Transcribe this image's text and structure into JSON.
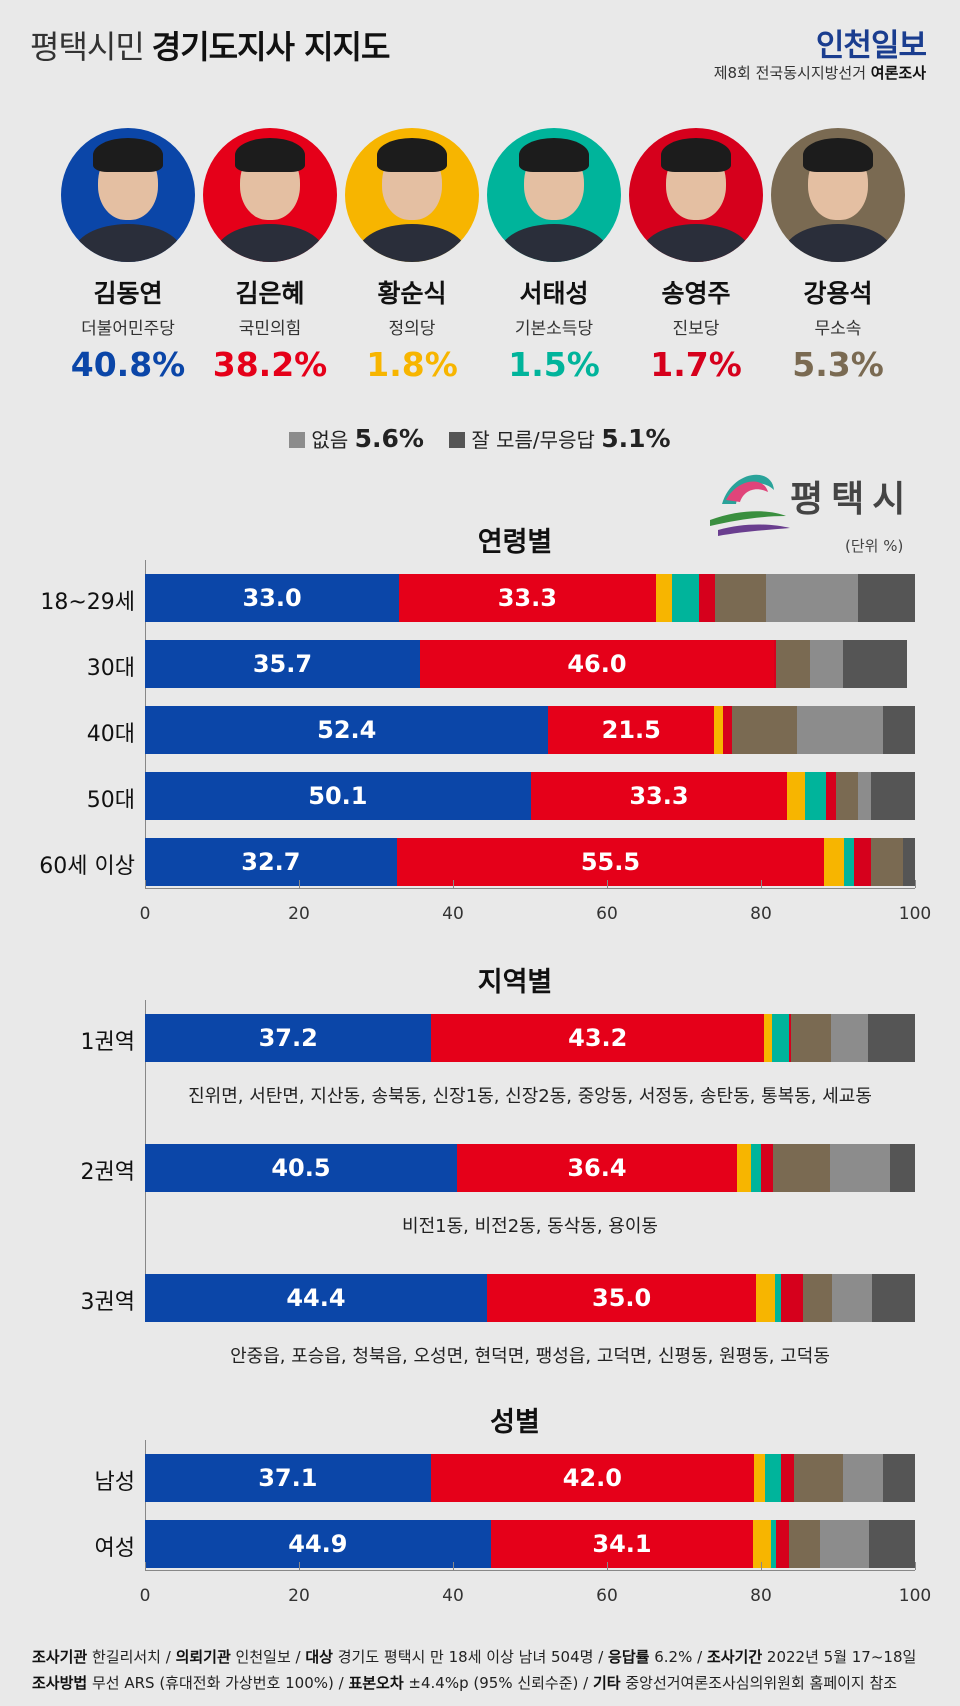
{
  "header": {
    "title_light": "평택시민",
    "title_bold": "경기도지사 지지도",
    "brand_part1": "인천",
    "brand_part2": "일보",
    "subline_light": "제8회 전국동시지방선거",
    "subline_bold": "여론조사"
  },
  "candidates": [
    {
      "name": "김동연",
      "party": "더불어민주당",
      "pct": "40.8%",
      "color": "#0b46a8"
    },
    {
      "name": "김은혜",
      "party": "국민의힘",
      "pct": "38.2%",
      "color": "#e50019"
    },
    {
      "name": "황순식",
      "party": "정의당",
      "pct": "1.8%",
      "color": "#f7b500"
    },
    {
      "name": "서태성",
      "party": "기본소득당",
      "pct": "1.5%",
      "color": "#00b49b"
    },
    {
      "name": "송영주",
      "party": "진보당",
      "pct": "1.7%",
      "color": "#d6001c"
    },
    {
      "name": "강용석",
      "party": "무소속",
      "pct": "5.3%",
      "color": "#7a6a52"
    }
  ],
  "extra_legend": {
    "none_label": "없음",
    "none_pct": "5.6%",
    "none_color": "#8c8c8c",
    "dk_label": "잘 모름/무응답",
    "dk_pct": "5.1%",
    "dk_color": "#555555"
  },
  "logo": {
    "text": "평택시"
  },
  "unit": "(단위 %)",
  "sections": {
    "age": "연령별",
    "region": "지역별",
    "gender": "성별"
  },
  "series_colors": [
    "#0b46a8",
    "#e50019",
    "#f7b500",
    "#00b49b",
    "#d6001c",
    "#7a6a52",
    "#8c8c8c",
    "#555555"
  ],
  "chart_data": [
    {
      "type": "bar",
      "orientation": "horizontal-stacked",
      "title": "연령별",
      "categories": [
        "18~29세",
        "30대",
        "40대",
        "50대",
        "60세 이상"
      ],
      "series": [
        {
          "name": "김동연",
          "values": [
            33.0,
            35.7,
            52.4,
            50.1,
            32.7
          ]
        },
        {
          "name": "김은혜",
          "values": [
            33.3,
            46.0,
            21.5,
            33.3,
            55.5
          ]
        },
        {
          "name": "황순식",
          "values": [
            2.2,
            0.0,
            1.2,
            2.3,
            2.6
          ]
        },
        {
          "name": "서태성",
          "values": [
            3.4,
            0.0,
            0.0,
            2.8,
            1.3
          ]
        },
        {
          "name": "송영주",
          "values": [
            2.1,
            0.3,
            1.1,
            1.2,
            2.2
          ]
        },
        {
          "name": "강용석",
          "values": [
            6.6,
            4.3,
            8.5,
            2.9,
            4.1
          ]
        },
        {
          "name": "없음",
          "values": [
            12.0,
            4.4,
            11.1,
            1.7,
            0.0
          ]
        },
        {
          "name": "잘 모름/무응답",
          "values": [
            7.4,
            8.3,
            4.2,
            5.7,
            1.6
          ]
        }
      ],
      "xlim": [
        0,
        100
      ],
      "xticks": [
        0,
        20,
        40,
        60,
        80,
        100
      ]
    },
    {
      "type": "bar",
      "orientation": "horizontal-stacked",
      "title": "지역별",
      "categories": [
        "1권역",
        "2권역",
        "3권역"
      ],
      "notes": [
        "진위면, 서탄면, 지산동, 송북동, 신장1동, 신장2동, 중앙동, 서정동, 송탄동, 통복동, 세교동",
        "비전1동, 비전2동, 동삭동, 용이동",
        "안중읍, 포승읍, 청북읍, 오성면, 현덕면, 팽성읍, 고덕면, 신평동, 원평동, 고덕동"
      ],
      "series": [
        {
          "name": "김동연",
          "values": [
            37.2,
            40.5,
            44.4
          ]
        },
        {
          "name": "김은혜",
          "values": [
            43.2,
            36.4,
            35.0
          ]
        },
        {
          "name": "황순식",
          "values": [
            1.0,
            1.8,
            2.4
          ]
        },
        {
          "name": "서태성",
          "values": [
            2.2,
            1.3,
            0.8
          ]
        },
        {
          "name": "송영주",
          "values": [
            0.3,
            1.6,
            2.8
          ]
        },
        {
          "name": "강용석",
          "values": [
            5.2,
            7.4,
            3.8
          ]
        },
        {
          "name": "없음",
          "values": [
            4.8,
            7.7,
            5.2
          ]
        },
        {
          "name": "잘 모름/무응답",
          "values": [
            6.1,
            3.3,
            5.6
          ]
        }
      ],
      "xlim": [
        0,
        100
      ]
    },
    {
      "type": "bar",
      "orientation": "horizontal-stacked",
      "title": "성별",
      "categories": [
        "남성",
        "여성"
      ],
      "series": [
        {
          "name": "김동연",
          "values": [
            37.1,
            44.9
          ]
        },
        {
          "name": "김은혜",
          "values": [
            42.0,
            34.1
          ]
        },
        {
          "name": "황순식",
          "values": [
            1.4,
            2.3
          ]
        },
        {
          "name": "서태성",
          "values": [
            2.1,
            0.7
          ]
        },
        {
          "name": "송영주",
          "values": [
            1.7,
            1.7
          ]
        },
        {
          "name": "강용석",
          "values": [
            6.4,
            4.0
          ]
        },
        {
          "name": "없음",
          "values": [
            5.2,
            6.3
          ]
        },
        {
          "name": "잘 모름/무응답",
          "values": [
            4.1,
            6.0
          ]
        }
      ],
      "xlim": [
        0,
        100
      ],
      "xticks": [
        0,
        20,
        40,
        60,
        80,
        100
      ]
    }
  ],
  "footer": {
    "line1": [
      {
        "k": "조사기관",
        "v": "한길리서치"
      },
      {
        "k": "의뢰기관",
        "v": "인천일보"
      },
      {
        "k": "대상",
        "v": "경기도 평택시 만 18세 이상 남녀 504명"
      },
      {
        "k": "응답률",
        "v": "6.2%"
      },
      {
        "k": "조사기간",
        "v": "2022년 5월 17~18일"
      }
    ],
    "line2": [
      {
        "k": "조사방법",
        "v": "무선 ARS (휴대전화 가상번호 100%)"
      },
      {
        "k": "표본오차",
        "v": "±4.4%p (95% 신뢰수준)"
      },
      {
        "k": "기타",
        "v": "중앙선거여론조사심의위원회 홈페이지 참조"
      }
    ]
  }
}
